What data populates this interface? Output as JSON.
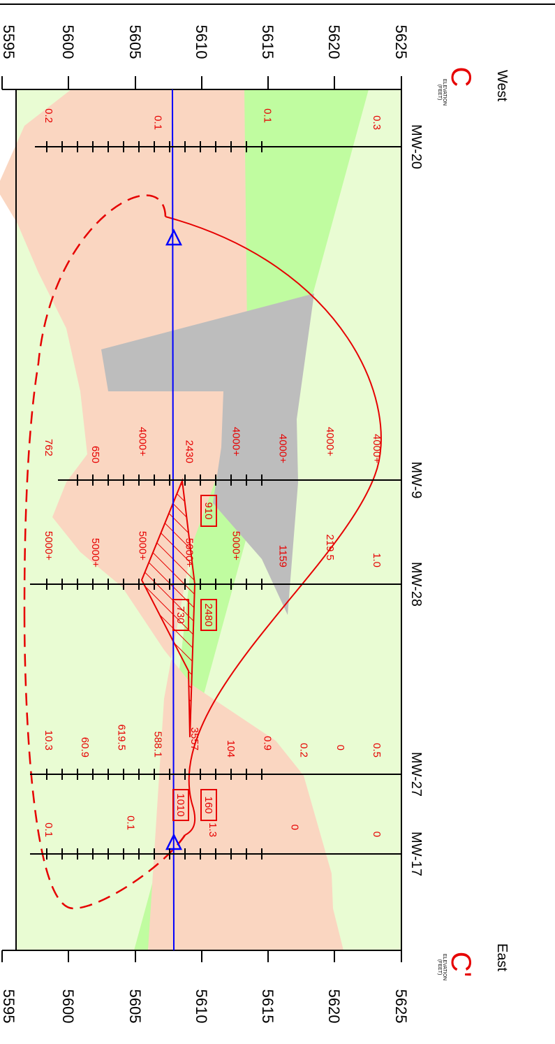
{
  "section": {
    "start": {
      "letter": "C",
      "direction": "West",
      "axis_title": "ELEVATION",
      "axis_units": "(FEET)"
    },
    "end": {
      "letter": "C'",
      "direction": "East",
      "axis_title": "ELEVATION",
      "axis_units": "(FEET)"
    },
    "elevation_ticks": [
      "5625",
      "5620",
      "5615",
      "5610",
      "5605",
      "5600",
      "5595"
    ]
  },
  "wells": [
    {
      "name": "MW-20",
      "values": [
        "0.3",
        "0.1",
        "0.1",
        "0.2"
      ]
    },
    {
      "name": "MW-9",
      "values": [
        "4000+",
        "4000+",
        "4000+",
        "4000+",
        "2430",
        "4000+",
        "650",
        "762"
      ],
      "boxed": [
        "910"
      ]
    },
    {
      "name": "MW-28",
      "values": [
        "1.0",
        "219.5",
        "1159",
        "5000+",
        "5000+",
        "5000+",
        "5000+",
        "5000+"
      ],
      "boxed": [
        "2480",
        "730"
      ]
    },
    {
      "name": "MW-27",
      "values": [
        "0.5",
        "0",
        "0.2",
        "0.9",
        "104",
        "3557",
        "588.1",
        "619.5",
        "60.9",
        "10.3"
      ],
      "boxed": [
        "160",
        "1010"
      ]
    },
    {
      "name": "MW-17",
      "values": [
        "0",
        "0",
        "1.3",
        "0.1",
        "0.1"
      ]
    }
  ],
  "colors": {
    "background": "#e9fcd3",
    "sand": "#fad6c1",
    "gravel": "#c0fca0",
    "clay": "#bdbdbd",
    "water_table": "#0000ff",
    "plume": "#e60000"
  }
}
